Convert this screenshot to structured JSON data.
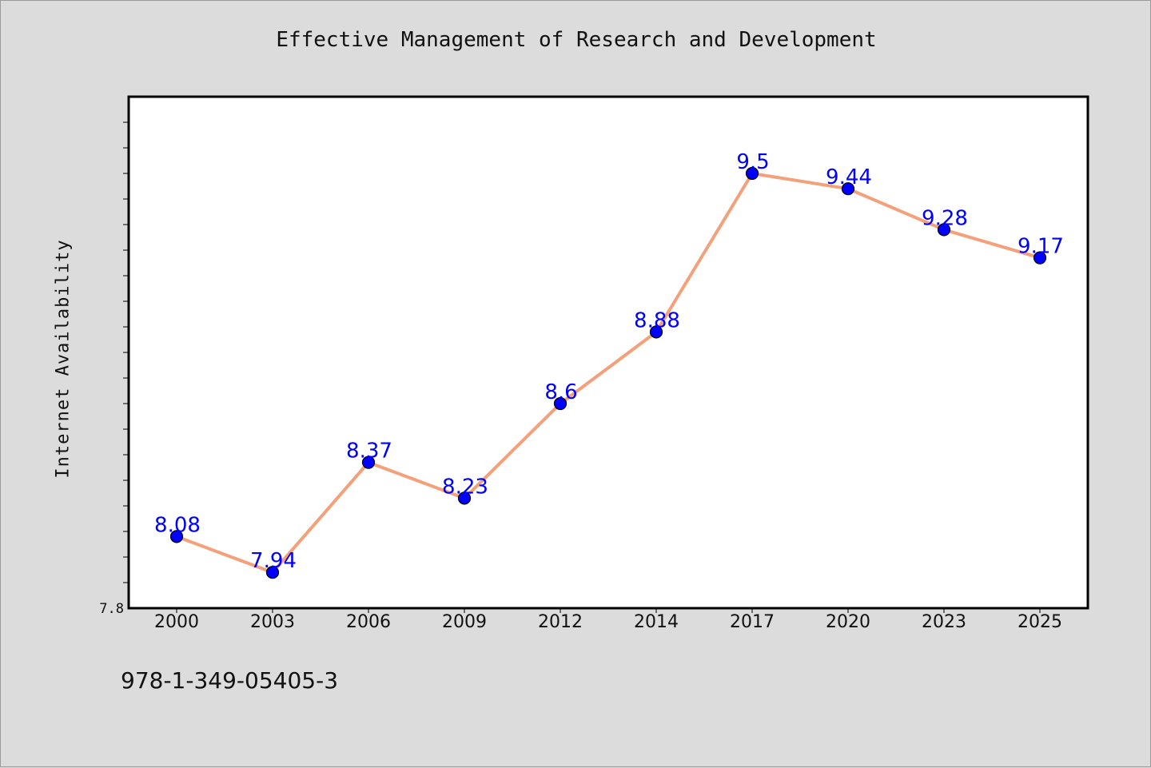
{
  "chart_data": {
    "type": "line",
    "title": "Effective Management of Research and Development",
    "xlabel": "",
    "ylabel": "Internet Availability",
    "categories": [
      "2000",
      "2003",
      "2006",
      "2009",
      "2012",
      "2014",
      "2017",
      "2020",
      "2023",
      "2025"
    ],
    "series": [
      {
        "values": [
          8.08,
          7.94,
          8.37,
          8.23,
          8.6,
          8.88,
          9.5,
          9.44,
          9.28,
          9.17
        ],
        "line_color": "#f4a07a",
        "marker_color": "#0000ff",
        "label_color": "#0000ff"
      }
    ],
    "ylim": [
      7.8,
      9.8
    ],
    "yticks_labeled": [
      "7.8"
    ],
    "grid": false,
    "legend": "none"
  },
  "footer": {
    "code": "978-1-349-05405-3"
  }
}
